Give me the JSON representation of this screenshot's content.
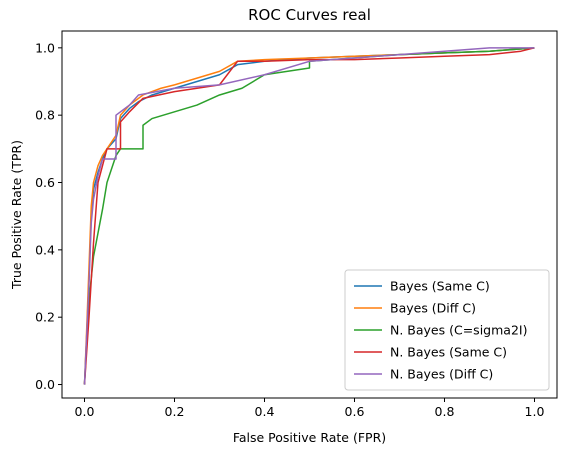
{
  "chart_data": {
    "type": "line",
    "title": "ROC Curves real",
    "xlabel": "False Positive Rate (FPR)",
    "ylabel": "True Positive Rate (TPR)",
    "xlim": [
      -0.05,
      1.05
    ],
    "ylim": [
      -0.04,
      1.05
    ],
    "xticks": [
      0.0,
      0.2,
      0.4,
      0.6,
      0.8,
      1.0
    ],
    "yticks": [
      0.0,
      0.2,
      0.4,
      0.6,
      0.8,
      1.0
    ],
    "xtick_labels": [
      "0.0",
      "0.2",
      "0.4",
      "0.6",
      "0.8",
      "1.0"
    ],
    "ytick_labels": [
      "0.0",
      "0.2",
      "0.4",
      "0.6",
      "0.8",
      "1.0"
    ],
    "grid": false,
    "legend_position": "bottom-right",
    "series": [
      {
        "name": "Bayes (Same C)",
        "color": "#1f77b4",
        "points": [
          [
            0,
            0
          ],
          [
            0.005,
            0.15
          ],
          [
            0.01,
            0.32
          ],
          [
            0.015,
            0.5
          ],
          [
            0.02,
            0.58
          ],
          [
            0.03,
            0.63
          ],
          [
            0.04,
            0.67
          ],
          [
            0.05,
            0.7
          ],
          [
            0.07,
            0.73
          ],
          [
            0.08,
            0.79
          ],
          [
            0.1,
            0.82
          ],
          [
            0.12,
            0.84
          ],
          [
            0.15,
            0.86
          ],
          [
            0.2,
            0.88
          ],
          [
            0.25,
            0.9
          ],
          [
            0.3,
            0.92
          ],
          [
            0.34,
            0.95
          ],
          [
            0.4,
            0.96
          ],
          [
            0.5,
            0.97
          ],
          [
            0.6,
            0.975
          ],
          [
            0.7,
            0.98
          ],
          [
            0.8,
            0.985
          ],
          [
            0.9,
            0.99
          ],
          [
            1.0,
            1.0
          ]
        ]
      },
      {
        "name": "Bayes (Diff C)",
        "color": "#ff7f0e",
        "points": [
          [
            0,
            0
          ],
          [
            0.005,
            0.17
          ],
          [
            0.01,
            0.35
          ],
          [
            0.015,
            0.53
          ],
          [
            0.02,
            0.6
          ],
          [
            0.03,
            0.65
          ],
          [
            0.04,
            0.68
          ],
          [
            0.05,
            0.7
          ],
          [
            0.07,
            0.74
          ],
          [
            0.08,
            0.8
          ],
          [
            0.1,
            0.83
          ],
          [
            0.13,
            0.86
          ],
          [
            0.17,
            0.88
          ],
          [
            0.2,
            0.89
          ],
          [
            0.25,
            0.91
          ],
          [
            0.3,
            0.93
          ],
          [
            0.34,
            0.96
          ],
          [
            0.4,
            0.965
          ],
          [
            0.5,
            0.97
          ],
          [
            0.6,
            0.975
          ],
          [
            0.7,
            0.98
          ],
          [
            0.8,
            0.985
          ],
          [
            0.9,
            0.99
          ],
          [
            1.0,
            1.0
          ]
        ]
      },
      {
        "name": "N. Bayes (C=sigma2I)",
        "color": "#2ca02c",
        "points": [
          [
            0,
            0
          ],
          [
            0.01,
            0.25
          ],
          [
            0.02,
            0.38
          ],
          [
            0.03,
            0.45
          ],
          [
            0.04,
            0.52
          ],
          [
            0.05,
            0.6
          ],
          [
            0.06,
            0.64
          ],
          [
            0.07,
            0.68
          ],
          [
            0.08,
            0.7
          ],
          [
            0.13,
            0.7
          ],
          [
            0.13,
            0.77
          ],
          [
            0.15,
            0.79
          ],
          [
            0.2,
            0.81
          ],
          [
            0.25,
            0.83
          ],
          [
            0.3,
            0.86
          ],
          [
            0.35,
            0.88
          ],
          [
            0.4,
            0.92
          ],
          [
            0.45,
            0.93
          ],
          [
            0.5,
            0.94
          ],
          [
            0.5,
            0.96
          ],
          [
            0.6,
            0.97
          ],
          [
            0.7,
            0.98
          ],
          [
            0.8,
            0.985
          ],
          [
            0.9,
            0.99
          ],
          [
            1.0,
            1.0
          ]
        ]
      },
      {
        "name": "N. Bayes (Same C)",
        "color": "#d62728",
        "points": [
          [
            0,
            0
          ],
          [
            0.01,
            0.2
          ],
          [
            0.02,
            0.42
          ],
          [
            0.03,
            0.6
          ],
          [
            0.04,
            0.65
          ],
          [
            0.05,
            0.7
          ],
          [
            0.08,
            0.7
          ],
          [
            0.08,
            0.78
          ],
          [
            0.1,
            0.81
          ],
          [
            0.13,
            0.85
          ],
          [
            0.2,
            0.87
          ],
          [
            0.3,
            0.89
          ],
          [
            0.34,
            0.96
          ],
          [
            0.4,
            0.96
          ],
          [
            0.5,
            0.965
          ],
          [
            0.6,
            0.965
          ],
          [
            0.7,
            0.97
          ],
          [
            0.8,
            0.975
          ],
          [
            0.9,
            0.98
          ],
          [
            0.97,
            0.99
          ],
          [
            1.0,
            1.0
          ]
        ]
      },
      {
        "name": "N. Bayes (Diff C)",
        "color": "#9467bd",
        "points": [
          [
            0,
            0
          ],
          [
            0.005,
            0.15
          ],
          [
            0.01,
            0.3
          ],
          [
            0.015,
            0.48
          ],
          [
            0.02,
            0.55
          ],
          [
            0.03,
            0.62
          ],
          [
            0.04,
            0.67
          ],
          [
            0.07,
            0.67
          ],
          [
            0.07,
            0.8
          ],
          [
            0.1,
            0.83
          ],
          [
            0.12,
            0.86
          ],
          [
            0.2,
            0.88
          ],
          [
            0.3,
            0.89
          ],
          [
            0.4,
            0.92
          ],
          [
            0.5,
            0.96
          ],
          [
            0.6,
            0.97
          ],
          [
            0.7,
            0.98
          ],
          [
            0.8,
            0.99
          ],
          [
            0.9,
            1.0
          ],
          [
            1.0,
            1.0
          ]
        ]
      }
    ]
  }
}
